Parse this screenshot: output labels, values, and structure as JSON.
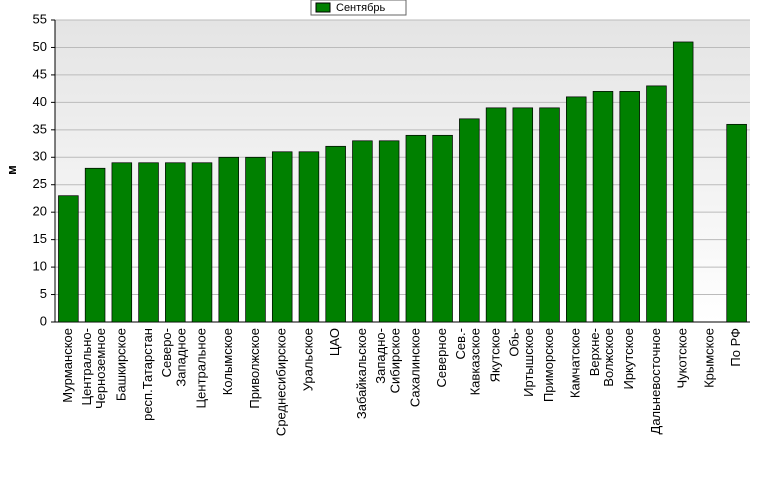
{
  "chart_data": {
    "type": "bar",
    "categories": [
      "Мурманское",
      "Центрально-\nЧерноземное",
      "Башкирское",
      "респ.Татарстан",
      "Северо-\nЗападное",
      "Центральное",
      "Колымское",
      "Приволжское",
      "Среднесибирское",
      "Уральское",
      "ЦАО",
      "Забайкальское",
      "Западно-\nСибирское",
      "Сахалинское",
      "Северное",
      "Сев.-\nКавказское",
      "Якутское",
      "Обь-\nИртышское",
      "Приморское",
      "Камчатское",
      "Верхне-\nВолжское",
      "Иркутское",
      "Дальневосточное",
      "Чукотское",
      "Крымское",
      "По РФ"
    ],
    "series": [
      {
        "name": "Сентябрь",
        "color": "#008000",
        "values": [
          23,
          28,
          29,
          29,
          29,
          29,
          30,
          30,
          31,
          31,
          32,
          33,
          33,
          34,
          34,
          37,
          39,
          39,
          39,
          41,
          42,
          42,
          43,
          51,
          null,
          36
        ]
      }
    ],
    "ylabel": "м",
    "ylim": [
      0,
      55
    ],
    "yticks": [
      0,
      5,
      10,
      15,
      20,
      25,
      30,
      35,
      40,
      45,
      50,
      55
    ],
    "grid": true
  }
}
